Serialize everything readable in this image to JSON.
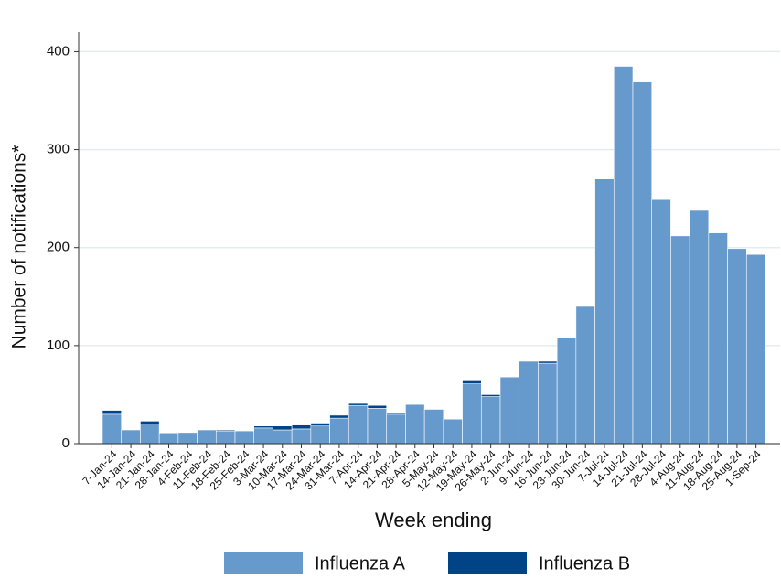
{
  "chart_data": {
    "type": "stacked-bar",
    "x_label": "Week ending",
    "y_label": "Number of notifications*",
    "categories": [
      "7-Jan-24",
      "14-Jan-24",
      "21-Jan-24",
      "28-Jan-24",
      "4-Feb-24",
      "11-Feb-24",
      "18-Feb-24",
      "25-Feb-24",
      "3-Mar-24",
      "10-Mar-24",
      "17-Mar-24",
      "24-Mar-24",
      "31-Mar-24",
      "7-Apr-24",
      "14-Apr-24",
      "21-Apr-24",
      "28-Apr-24",
      "5-May-24",
      "12-May-24",
      "19-May-24",
      "26-May-24",
      "2-Jun-24",
      "9-Jun-24",
      "16-Jun-24",
      "23-Jun-24",
      "30-Jun-24",
      "7-Jul-24",
      "14-Jul-24",
      "21-Jul-24",
      "28-Jul-24",
      "4-Aug-24",
      "11-Aug-24",
      "18-Aug-24",
      "25-Aug-24",
      "1-Sep-24"
    ],
    "series": [
      {
        "name": "Influenza A",
        "color": "#6699cc",
        "values": [
          30,
          14,
          20,
          11,
          10,
          14,
          13,
          13,
          16,
          14,
          15,
          18,
          26,
          39,
          36,
          30,
          40,
          35,
          25,
          61,
          48,
          68,
          84,
          82,
          108,
          140,
          270,
          385,
          369,
          249,
          212,
          238,
          215,
          199,
          193
        ]
      },
      {
        "name": "Influenza B",
        "color": "#004488",
        "values": [
          4,
          0,
          3,
          0,
          1,
          0,
          1,
          0,
          2,
          4,
          4,
          3,
          3,
          2,
          3,
          2,
          0,
          0,
          0,
          4,
          2,
          0,
          0,
          2,
          0,
          0,
          0,
          0,
          0,
          0,
          0,
          0,
          0,
          0,
          0
        ]
      }
    ],
    "ylim": [
      0,
      420
    ],
    "yticks": [
      0,
      100,
      200,
      300,
      400
    ],
    "grid": true,
    "legend": "bottom"
  }
}
